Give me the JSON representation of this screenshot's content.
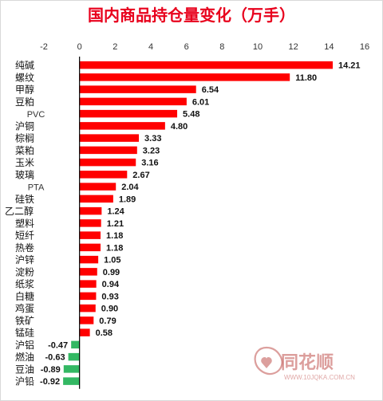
{
  "chart_data": {
    "type": "bar",
    "orientation": "horizontal",
    "title": "国内商品持仓量变化（万手）",
    "xlim": [
      -2,
      16
    ],
    "xticks": [
      -2,
      0,
      2,
      4,
      6,
      8,
      10,
      12,
      14,
      16
    ],
    "grid": false,
    "categories": [
      "纯碱",
      "螺纹",
      "甲醇",
      "豆粕",
      "PVC",
      "沪铜",
      "棕榈",
      "菜粕",
      "玉米",
      "玻璃",
      "PTA",
      "硅铁",
      "乙二醇",
      "塑料",
      "短纤",
      "热卷",
      "沪锌",
      "淀粉",
      "纸浆",
      "白糖",
      "鸡蛋",
      "铁矿",
      "锰硅",
      "沪铝",
      "燃油",
      "豆油",
      "沪铅"
    ],
    "values": [
      14.21,
      11.8,
      6.54,
      6.01,
      5.48,
      4.8,
      3.33,
      3.23,
      3.16,
      2.67,
      2.04,
      1.89,
      1.24,
      1.21,
      1.18,
      1.18,
      1.05,
      0.99,
      0.94,
      0.93,
      0.9,
      0.79,
      0.58,
      -0.47,
      -0.63,
      -0.89,
      -0.92
    ],
    "value_labels": [
      "14.21",
      "11.80",
      "6.54",
      "6.01",
      "5.48",
      "4.80",
      "3.33",
      "3.23",
      "3.16",
      "2.67",
      "2.04",
      "1.89",
      "1.24",
      "1.21",
      "1.18",
      "1.18",
      "1.05",
      "0.99",
      "0.94",
      "0.93",
      "0.90",
      "0.79",
      "0.58",
      "-0.47",
      "-0.63",
      "-0.89",
      "-0.92"
    ],
    "colors": {
      "positive": "#ff0000",
      "negative": "#33b863",
      "axis": "#000000",
      "title": "#e8001c"
    }
  },
  "watermark": {
    "text": "同花顺",
    "url": "WWW.10JQKA.COM.CN",
    "color": "#c0504d"
  }
}
